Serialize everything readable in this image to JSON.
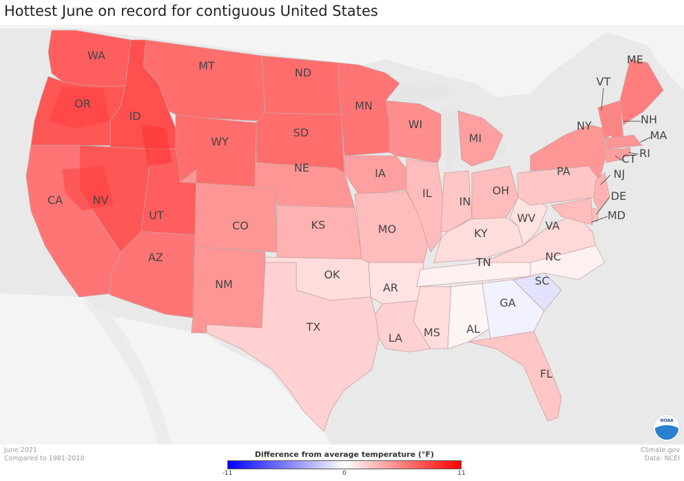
{
  "title": "Hottest June on record for contiguous United States",
  "footer": {
    "date": "June 2021",
    "compared": "Compared to 1981-2010",
    "credit": "Climate.gov",
    "source": "Data: NCEI"
  },
  "legend": {
    "title": "Difference from average temperature (°F)",
    "min_label": "-11",
    "mid_label": "0",
    "max_label": "11",
    "min": -11,
    "max": 11,
    "colors": {
      "cold": "#0000ff",
      "neutral": "#ffffff",
      "warm": "#ff0000"
    }
  },
  "logo_text": "NOAA",
  "map": {
    "background": "#e9e9e9",
    "land": "#f7f7f7",
    "water": "#e9e9e9",
    "states": [
      {
        "abbr": "WA",
        "anomaly": 8
      },
      {
        "abbr": "OR",
        "anomaly": 8.5
      },
      {
        "abbr": "CA",
        "anomaly": 6.5
      },
      {
        "abbr": "ID",
        "anomaly": 9
      },
      {
        "abbr": "NV",
        "anomaly": 8.5
      },
      {
        "abbr": "UT",
        "anomaly": 8
      },
      {
        "abbr": "AZ",
        "anomaly": 6.5
      },
      {
        "abbr": "MT",
        "anomaly": 7
      },
      {
        "abbr": "WY",
        "anomaly": 7
      },
      {
        "abbr": "CO",
        "anomaly": 4.5
      },
      {
        "abbr": "NM",
        "anomaly": 4.5
      },
      {
        "abbr": "ND",
        "anomaly": 7
      },
      {
        "abbr": "SD",
        "anomaly": 7
      },
      {
        "abbr": "NE",
        "anomaly": 4.5
      },
      {
        "abbr": "KS",
        "anomaly": 3
      },
      {
        "abbr": "OK",
        "anomaly": 1
      },
      {
        "abbr": "TX",
        "anomaly": 1.5
      },
      {
        "abbr": "MN",
        "anomaly": 6.5
      },
      {
        "abbr": "IA",
        "anomaly": 4
      },
      {
        "abbr": "MO",
        "anomaly": 2.5
      },
      {
        "abbr": "AR",
        "anomaly": 0.8
      },
      {
        "abbr": "LA",
        "anomaly": 1.5
      },
      {
        "abbr": "WI",
        "anomaly": 5
      },
      {
        "abbr": "IL",
        "anomaly": 2.5
      },
      {
        "abbr": "MI",
        "anomaly": 4
      },
      {
        "abbr": "IN",
        "anomaly": 2
      },
      {
        "abbr": "OH",
        "anomaly": 2.5
      },
      {
        "abbr": "KY",
        "anomaly": 1
      },
      {
        "abbr": "TN",
        "anomaly": 0.3
      },
      {
        "abbr": "MS",
        "anomaly": 1
      },
      {
        "abbr": "AL",
        "anomaly": 0.2
      },
      {
        "abbr": "GA",
        "anomaly": -0.3
      },
      {
        "abbr": "FL",
        "anomaly": 2
      },
      {
        "abbr": "SC",
        "anomaly": -0.8
      },
      {
        "abbr": "NC",
        "anomaly": 0.3
      },
      {
        "abbr": "VA",
        "anomaly": 1.2
      },
      {
        "abbr": "WV",
        "anomaly": 0.8
      },
      {
        "abbr": "PA",
        "anomaly": 2
      },
      {
        "abbr": "NY",
        "anomaly": 4.5
      },
      {
        "abbr": "VT",
        "anomaly": 5.5
      },
      {
        "abbr": "NH",
        "anomaly": 5.5
      },
      {
        "abbr": "ME",
        "anomaly": 6
      },
      {
        "abbr": "MA",
        "anomaly": 4.5
      },
      {
        "abbr": "RI",
        "anomaly": 4
      },
      {
        "abbr": "CT",
        "anomaly": 4
      },
      {
        "abbr": "NJ",
        "anomaly": 3
      },
      {
        "abbr": "DE",
        "anomaly": 2.5
      },
      {
        "abbr": "MD",
        "anomaly": 2.5
      }
    ]
  }
}
